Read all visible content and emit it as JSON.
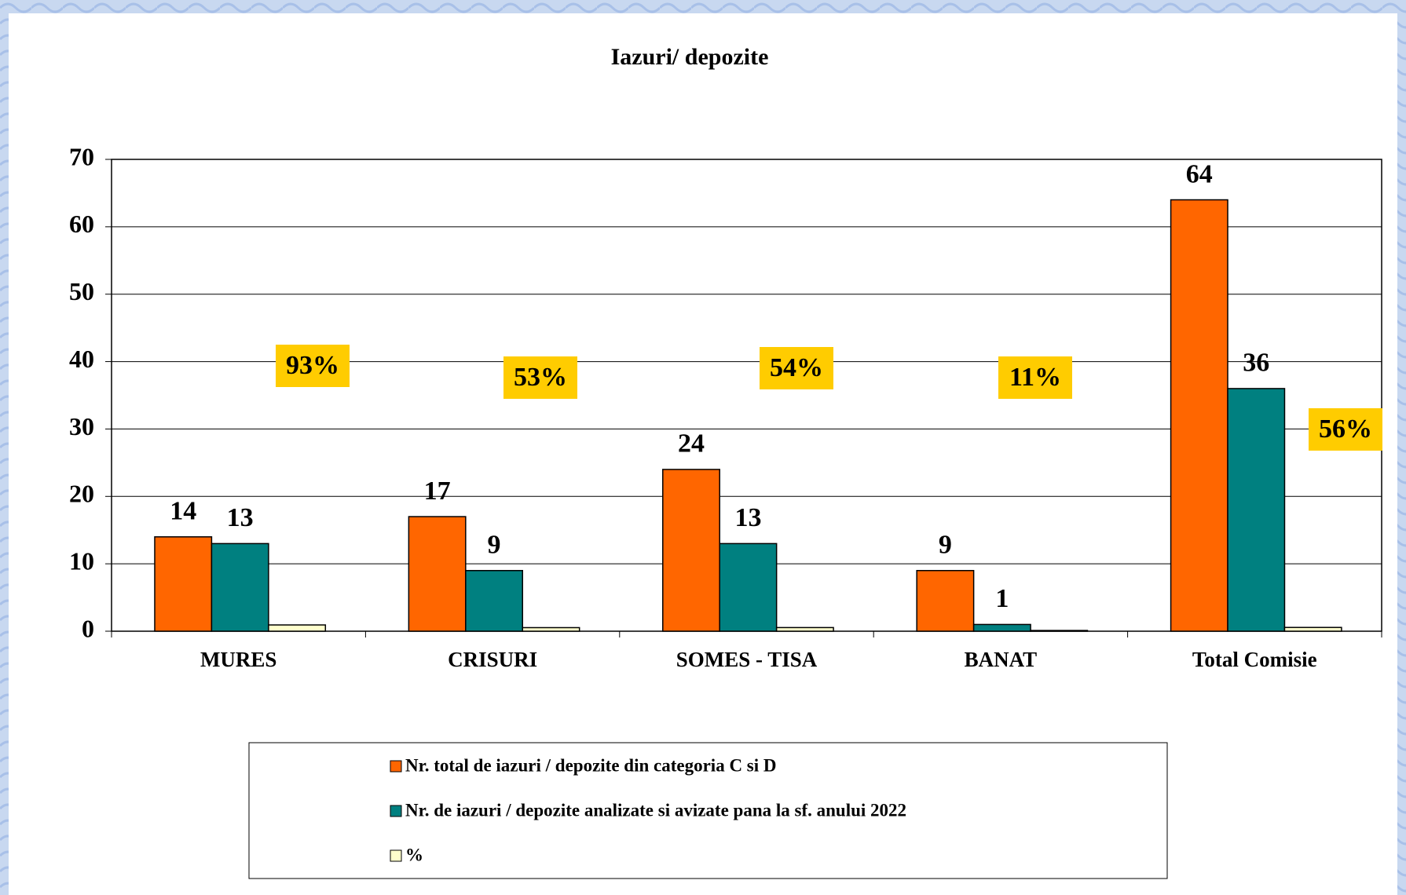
{
  "chart_data": {
    "type": "bar",
    "title": "Iazuri/ depozite",
    "categories": [
      "MURES",
      "CRISURI",
      "SOMES - TISA",
      "BANAT",
      "Total Comisie"
    ],
    "series": [
      {
        "name": "Nr. total de iazuri / depozite din categoria C si D",
        "color": "#ff6600",
        "values": [
          14,
          17,
          24,
          9,
          64
        ]
      },
      {
        "name": "Nr. de  iazuri / depozite analizate si avizate pana la sf. anului 2022",
        "color": "#008080",
        "values": [
          13,
          9,
          13,
          1,
          36
        ]
      },
      {
        "name": "%",
        "color": "#ffffcc",
        "values": [
          0.93,
          0.53,
          0.54,
          0.11,
          0.56
        ],
        "value_labels": [
          "93%",
          "53%",
          "54%",
          "11%",
          "56%"
        ]
      }
    ],
    "ylim": [
      0,
      70
    ],
    "yticks": [
      0,
      10,
      20,
      30,
      40,
      50,
      60,
      70
    ],
    "grid": true,
    "legend": "bottom"
  }
}
